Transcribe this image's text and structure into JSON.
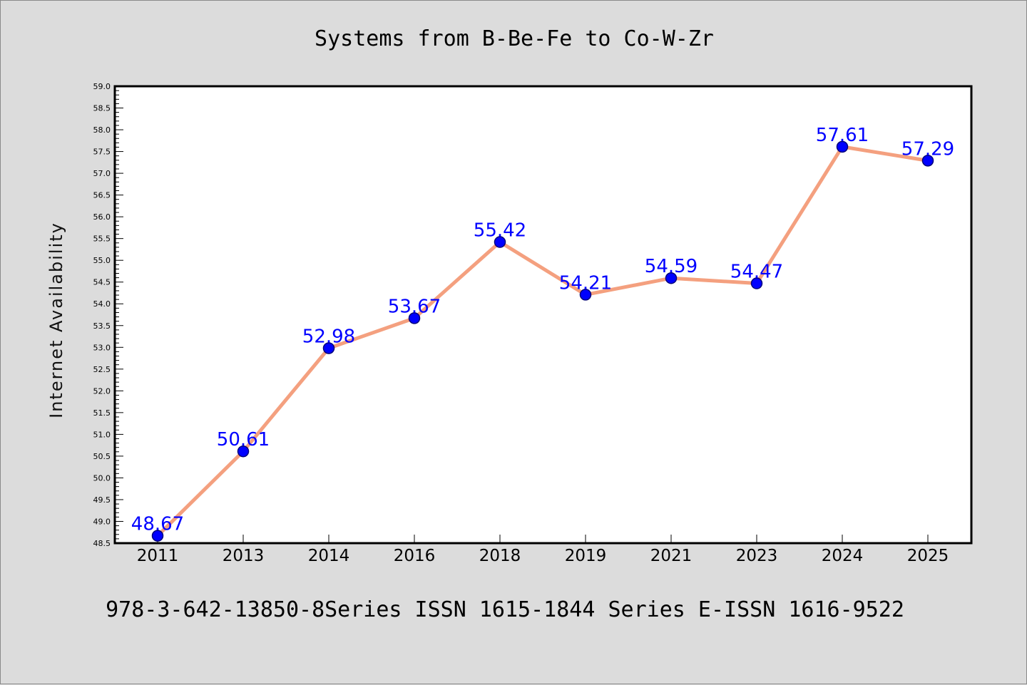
{
  "chart_data": {
    "type": "line",
    "title": "Systems from B-Be-Fe to Co-W-Zr",
    "subtitle": "",
    "xlabel": "",
    "ylabel": "Internet Availability",
    "categories": [
      "2011",
      "2013",
      "2014",
      "2016",
      "2018",
      "2019",
      "2021",
      "2023",
      "2024",
      "2025"
    ],
    "series": [
      {
        "values": [
          48.67,
          50.61,
          52.98,
          53.67,
          55.42,
          54.21,
          54.59,
          54.47,
          57.61,
          57.29
        ],
        "data_labels": [
          "48.67",
          "50.61",
          "52.98",
          "53.67",
          "55.42",
          "54.21",
          "54.59",
          "54.47",
          "57.61",
          "57.29"
        ]
      }
    ],
    "ylim": [
      48.5,
      59.0
    ],
    "y_ticks": [
      "48.5",
      "49.0",
      "49.5",
      "50.0",
      "50.5",
      "51.0",
      "51.5",
      "52.0",
      "52.5",
      "53.0",
      "53.5",
      "54.0",
      "54.5",
      "55.0",
      "55.5",
      "56.0",
      "56.5",
      "57.0",
      "57.5",
      "58.0",
      "58.5",
      "59.0"
    ],
    "grid": false,
    "legend": "none",
    "colors": {
      "line": "#f4a07f",
      "marker": "#0000ff",
      "marker_edge": "#00007a",
      "data_label": "#0000ff",
      "background": "#dcdcdc",
      "plot_area": "#ffffff",
      "axis": "#000000"
    }
  },
  "footer_text": "978-3-642-13850-8Series ISSN 1615-1844 Series E-ISSN 1616-9522"
}
